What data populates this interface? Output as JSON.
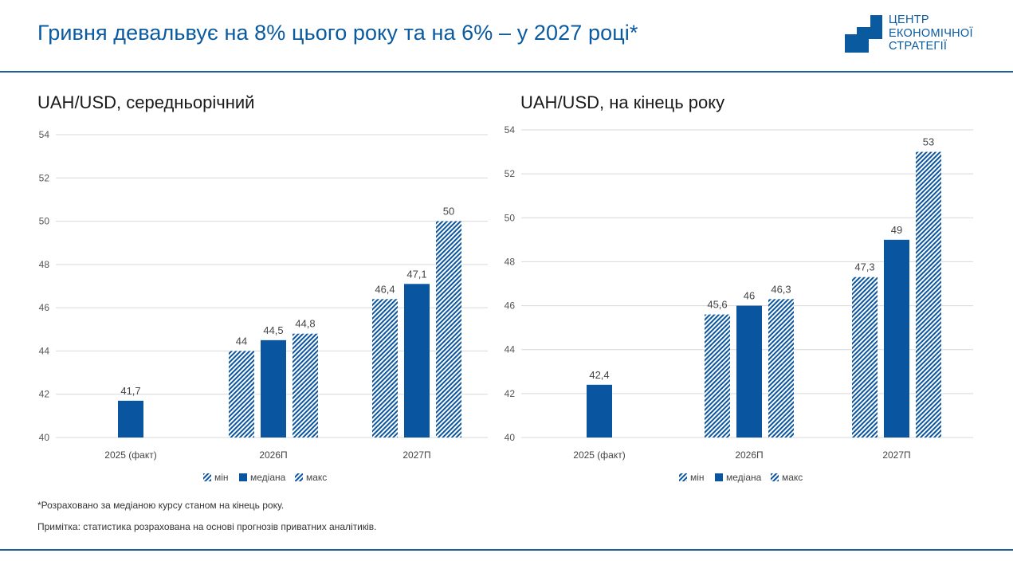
{
  "header": {
    "title": "Гривня девальвує на 8% цього року та на 6% – у 2027 році*",
    "logo_lines": [
      "ЦЕНТР",
      "ЕКОНОМІЧНОЇ",
      "СТРАТЕГІЇ"
    ]
  },
  "colors": {
    "accent": "#0a5aa0",
    "bar_solid": "#0a55a0",
    "rule": "#1f5d99",
    "grid": "#d9d9d9"
  },
  "chart_data": [
    {
      "type": "bar",
      "title": "UAH/USD, середньорічний",
      "categories": [
        "2025 (факт)",
        "2026П",
        "2027П"
      ],
      "series": [
        {
          "name": "мін",
          "values": [
            null,
            44,
            46.4
          ],
          "labels": [
            "",
            "44",
            "46,4"
          ]
        },
        {
          "name": "медіана",
          "values": [
            41.7,
            44.5,
            47.1
          ],
          "labels": [
            "41,7",
            "44,5",
            "47,1"
          ]
        },
        {
          "name": "макс",
          "values": [
            null,
            44.8,
            50
          ],
          "labels": [
            "",
            "44,8",
            "50"
          ]
        }
      ],
      "ylim": [
        40,
        54
      ],
      "yticks": [
        40,
        42,
        44,
        46,
        48,
        50,
        52,
        54
      ],
      "grid": true,
      "legend": "bottom"
    },
    {
      "type": "bar",
      "title": "UAH/USD, на кінець року",
      "categories": [
        "2025 (факт)",
        "2026П",
        "2027П"
      ],
      "series": [
        {
          "name": "мін",
          "values": [
            null,
            45.6,
            47.3
          ],
          "labels": [
            "",
            "45,6",
            "47,3"
          ]
        },
        {
          "name": "медіана",
          "values": [
            42.4,
            46,
            49
          ],
          "labels": [
            "42,4",
            "46",
            "49"
          ]
        },
        {
          "name": "макс",
          "values": [
            null,
            46.3,
            53
          ],
          "labels": [
            "",
            "46,3",
            "53"
          ]
        }
      ],
      "ylim": [
        40,
        54
      ],
      "yticks": [
        40,
        42,
        44,
        46,
        48,
        50,
        52,
        54
      ],
      "grid": true,
      "legend": "bottom"
    }
  ],
  "footnotes": {
    "note1": "*Розраховано за медіаною курсу станом на кінець року.",
    "note2": "Примітка: статистика розрахована на основі прогнозів приватних аналітиків."
  }
}
